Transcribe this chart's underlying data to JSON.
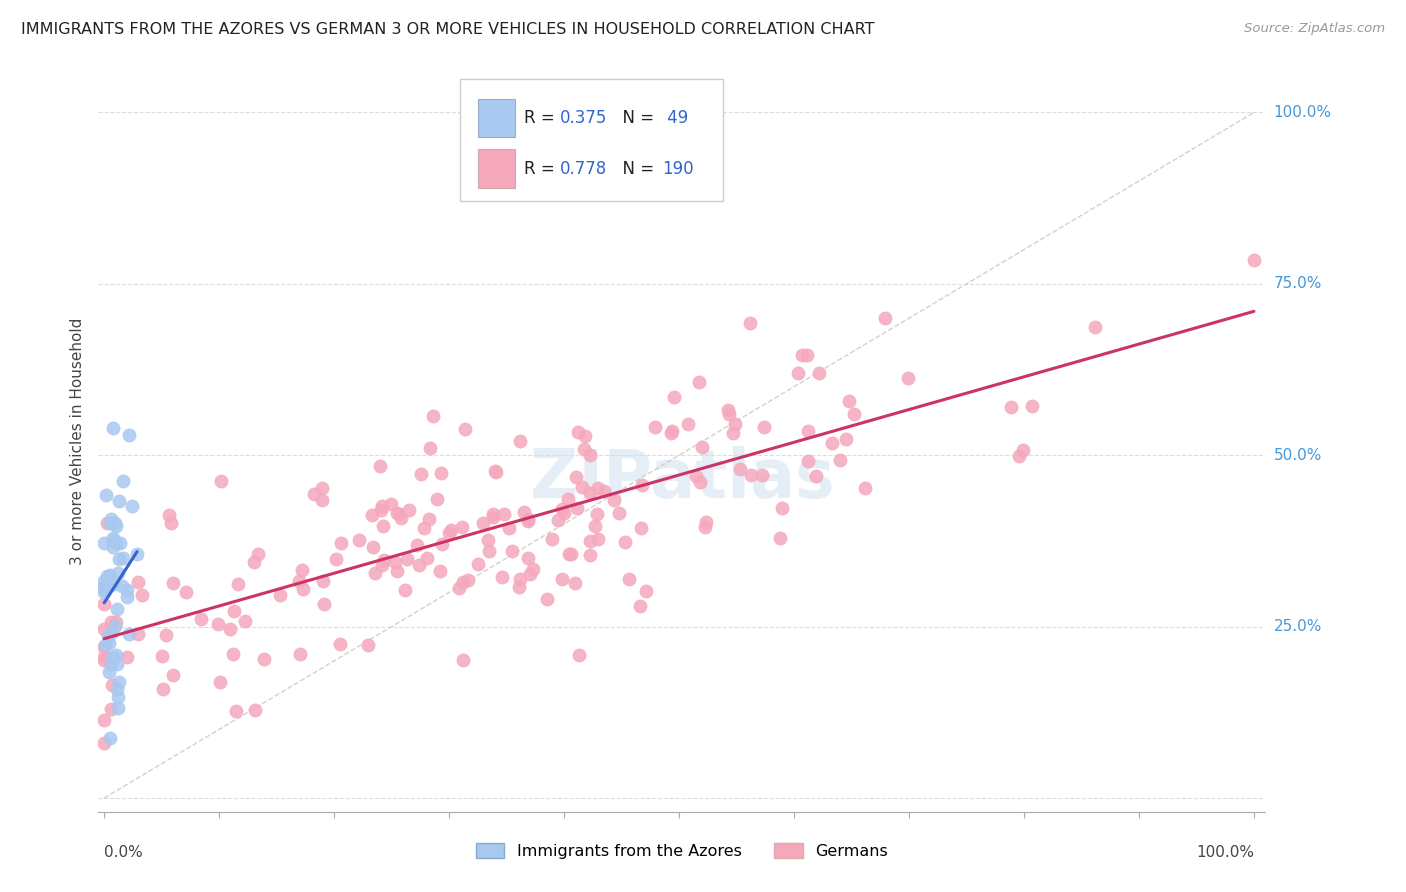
{
  "title": "IMMIGRANTS FROM THE AZORES VS GERMAN 3 OR MORE VEHICLES IN HOUSEHOLD CORRELATION CHART",
  "source": "Source: ZipAtlas.com",
  "ylabel": "3 or more Vehicles in Household",
  "legend_label1": "Immigrants from the Azores",
  "legend_label2": "Germans",
  "color_azores": "#a8c8f0",
  "color_german": "#f5a8bc",
  "color_azores_line": "#3366cc",
  "color_german_line": "#cc3366",
  "color_diagonal": "#cccccc",
  "R_azores": 0.375,
  "N_azores": 49,
  "R_german": 0.778,
  "N_german": 190,
  "seed_azores": 12,
  "seed_german": 7
}
